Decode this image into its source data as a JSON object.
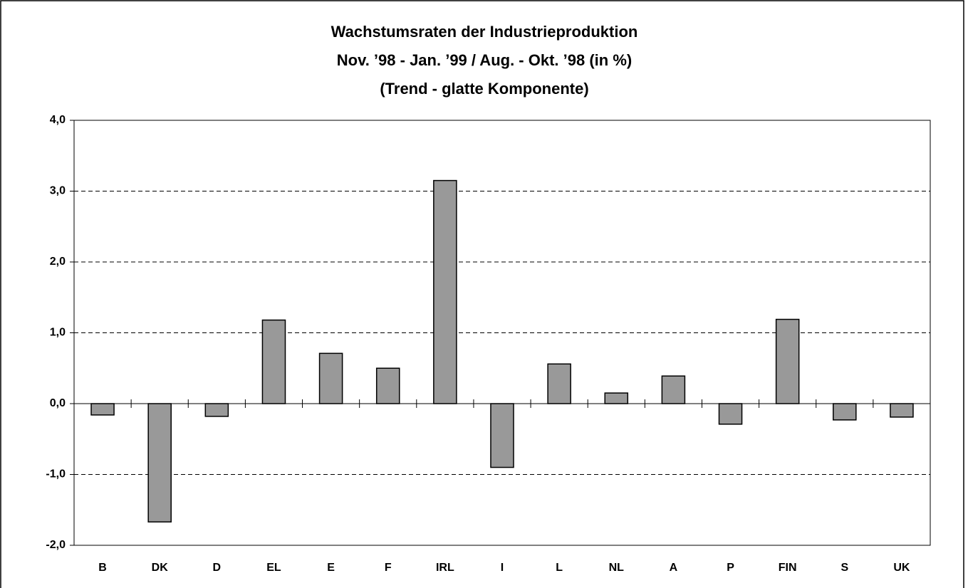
{
  "chart_data": {
    "type": "bar",
    "title": "Wachstumsraten der Industrieproduktion",
    "subtitle": [
      "Nov. ’98 - Jan. ’99 / Aug. - Okt. ’98 (in %)",
      "(Trend - glatte Komponente)"
    ],
    "categories": [
      "B",
      "DK",
      "D",
      "EL",
      "E",
      "F",
      "IRL",
      "I",
      "L",
      "NL",
      "A",
      "P",
      "FIN",
      "S",
      "UK"
    ],
    "values": [
      -0.16,
      -1.67,
      -0.18,
      1.18,
      0.71,
      0.5,
      3.15,
      -0.9,
      0.56,
      0.15,
      0.39,
      -0.29,
      1.19,
      -0.23,
      -0.19
    ],
    "color": "#999999",
    "ylim": [
      -2,
      4
    ],
    "yticks": [
      {
        "value": -2,
        "label": "-2,0"
      },
      {
        "value": -1,
        "label": "-1,0"
      },
      {
        "value": 0,
        "label": "0,0"
      },
      {
        "value": 1,
        "label": "1,0"
      },
      {
        "value": 2,
        "label": "2,0"
      },
      {
        "value": 3,
        "label": "3,0"
      },
      {
        "value": 4,
        "label": "4,0"
      }
    ],
    "grid": true
  }
}
